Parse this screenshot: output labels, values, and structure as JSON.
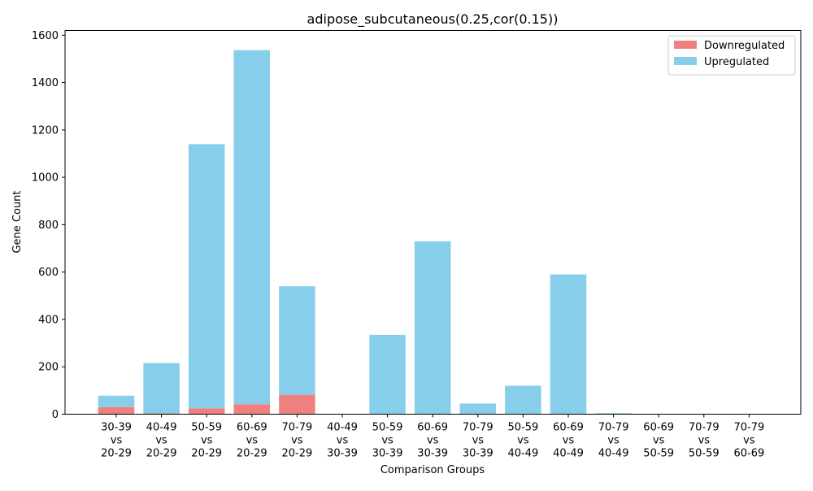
{
  "chart_data": {
    "type": "bar",
    "stacked": true,
    "title": "adipose_subcutaneous(0.25,cor(0.15))",
    "xlabel": "Comparison Groups",
    "ylabel": "Gene Count",
    "ylim": [
      0,
      1620
    ],
    "yticks": [
      0,
      200,
      400,
      600,
      800,
      1000,
      1200,
      1400,
      1600
    ],
    "grid": false,
    "legend_position": "top-right",
    "categories": [
      [
        "30-39",
        "vs",
        "20-29"
      ],
      [
        "40-49",
        "vs",
        "20-29"
      ],
      [
        "50-59",
        "vs",
        "20-29"
      ],
      [
        "60-69",
        "vs",
        "20-29"
      ],
      [
        "70-79",
        "vs",
        "20-29"
      ],
      [
        "40-49",
        "vs",
        "30-39"
      ],
      [
        "50-59",
        "vs",
        "30-39"
      ],
      [
        "60-69",
        "vs",
        "30-39"
      ],
      [
        "70-79",
        "vs",
        "30-39"
      ],
      [
        "50-59",
        "vs",
        "40-49"
      ],
      [
        "60-69",
        "vs",
        "40-49"
      ],
      [
        "70-79",
        "vs",
        "40-49"
      ],
      [
        "60-69",
        "vs",
        "50-59"
      ],
      [
        "70-79",
        "vs",
        "50-59"
      ],
      [
        "70-79",
        "vs",
        "60-69"
      ]
    ],
    "series": [
      {
        "name": "Downregulated",
        "color": "#f08080",
        "values": [
          30,
          4,
          25,
          42,
          82,
          0,
          0,
          0,
          0,
          0,
          0,
          0,
          0,
          0,
          0
        ]
      },
      {
        "name": "Upregulated",
        "color": "#87ceeb",
        "values": [
          48,
          212,
          1115,
          1495,
          458,
          0,
          335,
          730,
          45,
          120,
          590,
          4,
          0,
          0,
          0
        ]
      }
    ]
  }
}
